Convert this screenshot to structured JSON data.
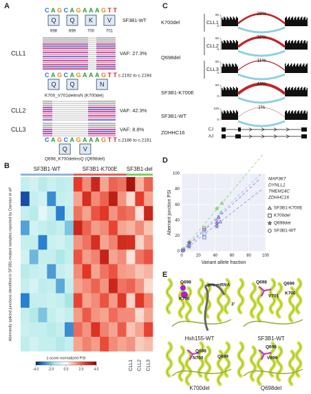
{
  "panel_a": {
    "letter": "A",
    "wt": {
      "sequence": "CAGCAGAAAGTT",
      "residues": [
        "Q",
        "Q",
        "K",
        "V"
      ],
      "positions": [
        698,
        699,
        700,
        701
      ],
      "label": "SF3B1-WT"
    },
    "samples": [
      {
        "name": "CLL1",
        "vaf": "VAF: 27.3%"
      },
      {
        "name": "CLL2",
        "vaf": "VAF: 42.3%"
      },
      {
        "name": "CLL3",
        "vaf": "VAF: 8.8%"
      }
    ],
    "k700del": {
      "sequence": "CAGCAGAAAGTT",
      "range": "c.2192 to c.2194",
      "residues": [
        "Q",
        "Q",
        "N"
      ],
      "label": "K700_V701delinsN (K700del)"
    },
    "q698del": {
      "sequence": "CAGCAGAAAGTT",
      "range": "c.2186 to c.2191",
      "residues": [
        "Q",
        "V"
      ],
      "label": "Q698_K700delinsQ (Q698del)"
    }
  },
  "panel_b": {
    "letter": "B",
    "y_label": "Aberrantly spliced junctions identified in SF3B1-mutant samples reported by Darman et al⁸",
    "groups": [
      {
        "name": "SF3B1-WT",
        "color": "#8fb3e0",
        "values": [
          [
            -1,
            -0.8,
            -1.2,
            -0.9,
            -1.1,
            -1
          ],
          [
            -3.5,
            -1,
            -0.8,
            -2.8,
            -1,
            -0.9
          ],
          [
            -1,
            -1.2,
            -0.5,
            -1,
            -3,
            -1
          ],
          [
            -2.5,
            -0.8,
            -1,
            -1.2,
            -1,
            -2
          ],
          [
            -1,
            -1,
            -3,
            -0.9,
            -0.8,
            -1.1
          ],
          [
            -0.8,
            -2.2,
            -1,
            -1,
            -1.4,
            -1
          ],
          [
            -1.2,
            -1,
            -0.9,
            -2.6,
            -1,
            -0.8
          ],
          [
            -1,
            -0.7,
            -1.1,
            -1,
            -2.4,
            -1
          ],
          [
            -3,
            -1,
            -1,
            -0.9,
            -1,
            -1.5
          ],
          [
            -1,
            -1.3,
            -2,
            -1,
            -0.8,
            -1
          ],
          [
            -0.9,
            -1,
            -1,
            -1.2,
            -1,
            -2.8
          ],
          [
            -1.1,
            -0.8,
            -1,
            -1,
            -1.3,
            -1
          ]
        ]
      },
      {
        "name": "SF3B1-K700E",
        "color": "#e0605a",
        "values": [
          [
            2.5,
            1.5,
            3,
            1.2,
            2,
            1.8
          ],
          [
            1.2,
            2.8,
            1.5,
            2,
            3.2,
            1.4
          ],
          [
            1.8,
            1.2,
            2.2,
            2.6,
            1.4,
            2
          ],
          [
            3,
            2,
            1.3,
            1.5,
            2.4,
            1.2
          ],
          [
            1.4,
            1.8,
            2.8,
            1.2,
            1.6,
            2.9
          ],
          [
            2.2,
            1.3,
            1.6,
            3.1,
            1.2,
            1.5
          ],
          [
            1.5,
            2.6,
            1.2,
            1.8,
            2.2,
            1.3
          ],
          [
            1.2,
            1.5,
            2,
            1.4,
            3,
            1.8
          ],
          [
            2.4,
            1.2,
            1.5,
            2.2,
            1.3,
            2.6
          ],
          [
            1.3,
            2.1,
            1.4,
            1.2,
            1.9,
            1.5
          ],
          [
            1.9,
            1.4,
            2.7,
            1.6,
            1.2,
            2.1
          ],
          [
            1.2,
            1.6,
            1.3,
            2.3,
            1.5,
            1.2
          ]
        ]
      },
      {
        "name": "SF3B1-del",
        "color": "#7cd05a",
        "columns": [
          "CLL1",
          "CLL2",
          "CLL3"
        ],
        "values": [
          [
            3.5,
            1,
            2
          ],
          [
            0.5,
            2.5,
            1.2
          ],
          [
            1.8,
            0.4,
            3
          ],
          [
            1,
            1.5,
            0.8
          ],
          [
            2.8,
            0.6,
            1.4
          ],
          [
            0.4,
            1.8,
            2.2
          ],
          [
            1.2,
            0.8,
            1
          ],
          [
            2,
            1.4,
            0.5
          ],
          [
            0.6,
            2.6,
            1.6
          ],
          [
            1.5,
            0.5,
            1.2
          ],
          [
            0.8,
            1.2,
            2.4
          ],
          [
            1.4,
            0.7,
            0.9
          ]
        ]
      }
    ],
    "colorbar": {
      "label": "z-score normalized PSI",
      "lim": [
        -4,
        4
      ],
      "ticks": [
        {
          "value": -4,
          "label": "-4.0"
        },
        {
          "value": -2,
          "label": "-2.0"
        },
        {
          "value": 0,
          "label": "0.0"
        },
        {
          "value": 2,
          "label": "2.0"
        },
        {
          "value": 4,
          "label": "4.0"
        }
      ]
    }
  },
  "panel_c": {
    "letter": "C",
    "groups": [
      {
        "name": "K700del",
        "tracks": [
          {
            "sample": "CLL1",
            "psi": 28,
            "psi_label": "28%",
            "yticks": [
              0,
              60
            ]
          }
        ]
      },
      {
        "name": "Q698del",
        "tracks": [
          {
            "sample": "CLL2",
            "psi": 36,
            "psi_label": "36%",
            "yticks": [
              0,
              60
            ]
          },
          {
            "sample": "CLL3",
            "psi": 11,
            "psi_label": "11%",
            "yticks": [
              0,
              60
            ]
          }
        ]
      },
      {
        "name": "SF3B1-K700E",
        "tracks": [
          {
            "psi": 44,
            "psi_label": "44%",
            "yticks": [
              0,
              60
            ]
          }
        ]
      },
      {
        "name": "SF3B1-WT",
        "tracks": [
          {
            "psi": 1,
            "psi_label": "1%",
            "yticks": [
              0,
              100
            ]
          }
        ]
      }
    ],
    "gene": {
      "name": "ZDHHC16",
      "rows": [
        "CJ",
        "AJ"
      ]
    }
  },
  "panel_d": {
    "letter": "D"
  },
  "chart_data": {
    "type": "scatter",
    "xlabel": "Variant allele fraction",
    "ylabel": "Aberrant junction PSI",
    "xlim": [
      0,
      100
    ],
    "ylim": [
      0,
      100
    ],
    "xticks": [
      0,
      20,
      40,
      60,
      80,
      100
    ],
    "yticks": [
      0,
      20,
      40,
      60,
      80,
      100
    ],
    "grid": true,
    "series": [
      {
        "name": "MAP3K7",
        "color": "#66cc44",
        "x": [
          2,
          9,
          27,
          42,
          48
        ],
        "y": [
          3,
          12,
          30,
          55,
          62
        ],
        "markers": [
          "circle",
          "star",
          "square",
          "star",
          "triangle"
        ]
      },
      {
        "name": "DYNLL1",
        "color": "#66b3e0",
        "x": [
          1,
          9,
          27,
          42,
          47
        ],
        "y": [
          2,
          8,
          22,
          40,
          50
        ],
        "markers": [
          "circle",
          "star",
          "square",
          "star",
          "triangle"
        ]
      },
      {
        "name": "TMEM14C",
        "color": "#6878a0",
        "x": [
          2,
          9,
          27,
          42,
          46
        ],
        "y": [
          1,
          6,
          18,
          32,
          38
        ],
        "markers": [
          "circle",
          "star",
          "square",
          "star",
          "triangle"
        ]
      },
      {
        "name": "ZDHHC16",
        "color": "#9040c0",
        "x": [
          1,
          9,
          27,
          42,
          44
        ],
        "y": [
          1,
          11,
          28,
          36,
          44
        ],
        "markers": [
          "circle",
          "star",
          "square",
          "star",
          "triangle"
        ]
      }
    ],
    "marker_legend": [
      {
        "name": "SF3B1-K700E",
        "shape": "triangle"
      },
      {
        "name": "K700del",
        "shape": "square"
      },
      {
        "name": "Q698del",
        "shape": "star"
      },
      {
        "name": "SF3B1-WT",
        "shape": "circle"
      }
    ]
  },
  "panel_e": {
    "letter": "E",
    "structures": [
      {
        "name": "Hsh155-WT",
        "labels": [
          "Q698",
          "K700",
          "pre-mRNA",
          "3'"
        ]
      },
      {
        "name": "SF3B1-WT",
        "labels": [
          "Q698",
          "Q699",
          "V701",
          "K700"
        ]
      },
      {
        "name": "K700del",
        "labels": [
          "Q698",
          "Q699",
          "N700"
        ]
      },
      {
        "name": "Q698del",
        "labels": [
          "Q698",
          "V699"
        ]
      }
    ]
  }
}
